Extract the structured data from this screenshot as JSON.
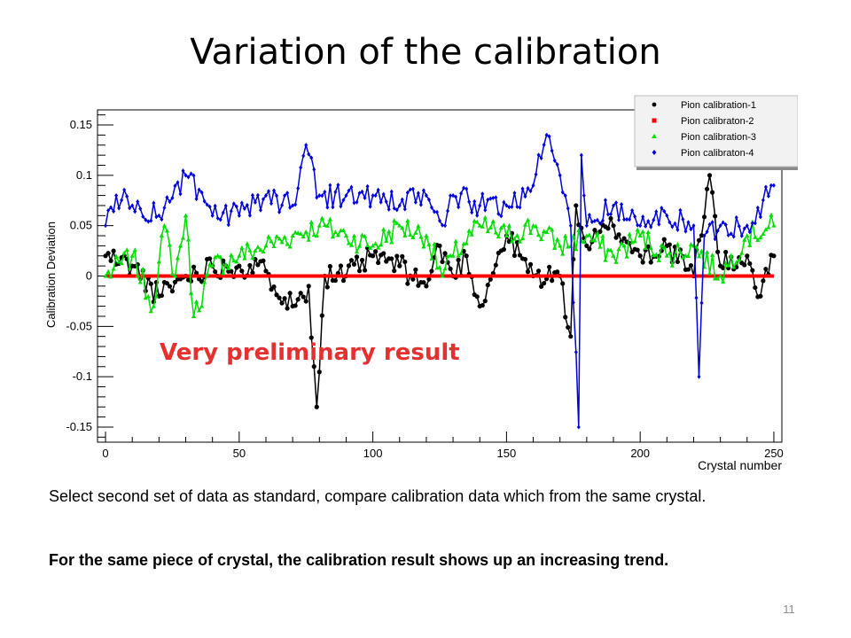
{
  "slide": {
    "title": "Variation of the calibration",
    "paragraph1": "Select second set of data as standard, compare calibration data which from the same crystal.",
    "paragraph2": "For the same piece of crystal, the calibration result shows up an increasing trend.",
    "page_number": "11"
  },
  "chart_data": {
    "type": "line",
    "xlabel": "Crystal number",
    "ylabel": "Calibration Deviation",
    "xlim": [
      -3,
      253
    ],
    "ylim": [
      -0.165,
      0.165
    ],
    "x_ticks": [
      0,
      50,
      100,
      150,
      200,
      250
    ],
    "y_ticks": [
      -0.15,
      -0.1,
      -0.05,
      0,
      0.05,
      0.1,
      0.15
    ],
    "x_tick_labels": [
      "0",
      "50",
      "100",
      "150",
      "200",
      "250"
    ],
    "y_tick_labels": [
      "-0.15",
      "-0.1",
      "-0.05",
      "0",
      "0.05",
      "0.1",
      "0.15"
    ],
    "annotation": "Very preliminary result",
    "legend_position": "top-right",
    "grid": false,
    "series": [
      {
        "name": "Pion calibration-1",
        "color": "#000000",
        "marker": "circle",
        "anchors": [
          [
            0,
            0.02
          ],
          [
            10,
            0.01
          ],
          [
            20,
            -0.02
          ],
          [
            30,
            0.0
          ],
          [
            40,
            0.01
          ],
          [
            50,
            0.01
          ],
          [
            60,
            0.005
          ],
          [
            70,
            -0.03
          ],
          [
            76,
            -0.01
          ],
          [
            79,
            -0.13
          ],
          [
            82,
            0.0
          ],
          [
            90,
            0.0
          ],
          [
            100,
            0.02
          ],
          [
            110,
            0.01
          ],
          [
            120,
            -0.01
          ],
          [
            125,
            0.03
          ],
          [
            130,
            0.0
          ],
          [
            135,
            0.02
          ],
          [
            140,
            -0.03
          ],
          [
            150,
            0.04
          ],
          [
            160,
            0.0
          ],
          [
            170,
            0.0
          ],
          [
            174,
            -0.06
          ],
          [
            176,
            0.07
          ],
          [
            180,
            0.03
          ],
          [
            190,
            0.05
          ],
          [
            200,
            0.02
          ],
          [
            210,
            0.03
          ],
          [
            220,
            0.0
          ],
          [
            226,
            0.1
          ],
          [
            230,
            0.01
          ],
          [
            240,
            0.02
          ],
          [
            245,
            -0.02
          ],
          [
            250,
            0.02
          ]
        ],
        "noise": 0.012,
        "seed": 11
      },
      {
        "name": "Pion calibraton-2",
        "color": "#ff0000",
        "marker": "square",
        "anchors": [
          [
            0,
            0.0
          ],
          [
            250,
            0.0
          ]
        ],
        "noise": 0.0,
        "seed": 3
      },
      {
        "name": "Pion calibration-3",
        "color": "#00dd00",
        "marker": "triangle",
        "anchors": [
          [
            0,
            0.0
          ],
          [
            10,
            0.02
          ],
          [
            18,
            -0.03
          ],
          [
            22,
            0.05
          ],
          [
            26,
            0.0
          ],
          [
            30,
            0.06
          ],
          [
            33,
            -0.04
          ],
          [
            40,
            0.01
          ],
          [
            50,
            0.02
          ],
          [
            60,
            0.03
          ],
          [
            70,
            0.04
          ],
          [
            80,
            0.05
          ],
          [
            90,
            0.04
          ],
          [
            100,
            0.03
          ],
          [
            110,
            0.05
          ],
          [
            120,
            0.04
          ],
          [
            126,
            0.0
          ],
          [
            130,
            0.02
          ],
          [
            140,
            0.05
          ],
          [
            150,
            0.04
          ],
          [
            160,
            0.05
          ],
          [
            170,
            0.03
          ],
          [
            180,
            0.04
          ],
          [
            190,
            0.02
          ],
          [
            200,
            0.04
          ],
          [
            210,
            0.02
          ],
          [
            220,
            0.03
          ],
          [
            230,
            0.0
          ],
          [
            240,
            0.04
          ],
          [
            250,
            0.05
          ]
        ],
        "noise": 0.012,
        "seed": 7
      },
      {
        "name": "Pion calibraton-4",
        "color": "#0000dd",
        "marker": "diamond",
        "anchors": [
          [
            0,
            0.05
          ],
          [
            4,
            0.08
          ],
          [
            10,
            0.07
          ],
          [
            20,
            0.06
          ],
          [
            30,
            0.1
          ],
          [
            40,
            0.06
          ],
          [
            50,
            0.06
          ],
          [
            60,
            0.08
          ],
          [
            70,
            0.07
          ],
          [
            75,
            0.13
          ],
          [
            80,
            0.08
          ],
          [
            90,
            0.08
          ],
          [
            100,
            0.08
          ],
          [
            110,
            0.07
          ],
          [
            120,
            0.08
          ],
          [
            127,
            0.05
          ],
          [
            130,
            0.08
          ],
          [
            140,
            0.07
          ],
          [
            150,
            0.07
          ],
          [
            160,
            0.09
          ],
          [
            165,
            0.14
          ],
          [
            170,
            0.1
          ],
          [
            174,
            0.05
          ],
          [
            177,
            -0.15
          ],
          [
            178,
            0.12
          ],
          [
            180,
            0.05
          ],
          [
            190,
            0.07
          ],
          [
            200,
            0.05
          ],
          [
            210,
            0.06
          ],
          [
            220,
            0.05
          ],
          [
            222,
            -0.1
          ],
          [
            224,
            0.04
          ],
          [
            230,
            0.05
          ],
          [
            240,
            0.05
          ],
          [
            250,
            0.09
          ]
        ],
        "noise": 0.012,
        "seed": 23
      }
    ]
  }
}
